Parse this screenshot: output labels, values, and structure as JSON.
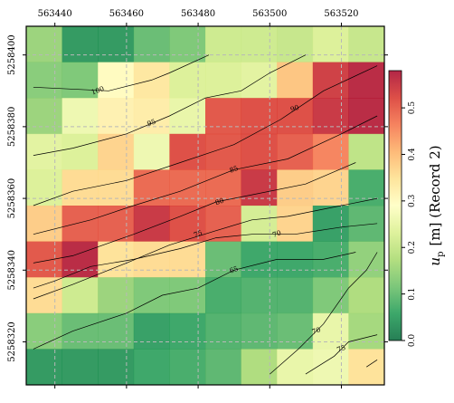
{
  "chart_data": {
    "type": "heatmap",
    "xlim": [
      563432,
      563532
    ],
    "ylim": [
      5258308,
      5258408
    ],
    "x_ticks": [
      "563440",
      "563460",
      "563480",
      "563500",
      "563520"
    ],
    "x_tick_values": [
      563440,
      563460,
      563480,
      563500,
      563520
    ],
    "y_ticks": [
      "5258320",
      "5258340",
      "5258360",
      "5258380",
      "5258400"
    ],
    "y_tick_values": [
      5258320,
      5258340,
      5258360,
      5258380,
      5258400
    ],
    "grid": true,
    "cell_size": 10,
    "x_origin": 563432,
    "y_origin": 5258408,
    "colorbar": {
      "label": "u_p [m] (Record 2)",
      "label_main": "u",
      "label_sub": "p",
      "label_rest": "[m]  (Record 2)",
      "min": 0.0,
      "max": 0.58,
      "ticks": [
        "0.0",
        "0.1",
        "0.2",
        "0.3",
        "0.4",
        "0.5"
      ],
      "tick_values": [
        0.0,
        0.1,
        0.2,
        0.3,
        0.4,
        0.5
      ],
      "colormap": "RdYlGn_r"
    },
    "values": [
      [
        0.15,
        0.04,
        0.04,
        0.1,
        0.12,
        0.21,
        0.21,
        0.2,
        0.23,
        0.2
      ],
      [
        0.13,
        0.12,
        0.3,
        0.34,
        0.23,
        0.23,
        0.24,
        0.39,
        0.54,
        0.57
      ],
      [
        0.15,
        0.26,
        0.32,
        0.33,
        0.25,
        0.51,
        0.52,
        0.52,
        0.55,
        0.57
      ],
      [
        0.24,
        0.23,
        0.37,
        0.26,
        0.52,
        0.51,
        0.52,
        0.5,
        0.46,
        0.19
      ],
      [
        0.23,
        0.36,
        0.36,
        0.49,
        0.49,
        0.49,
        0.55,
        0.38,
        0.37,
        0.07
      ],
      [
        0.38,
        0.5,
        0.5,
        0.55,
        0.52,
        0.5,
        0.22,
        0.37,
        0.05,
        0.09
      ],
      [
        0.51,
        0.57,
        0.35,
        0.36,
        0.36,
        0.1,
        0.06,
        0.06,
        0.07,
        0.14
      ],
      [
        0.36,
        0.21,
        0.15,
        0.12,
        0.12,
        0.07,
        0.08,
        0.08,
        0.12,
        0.17
      ],
      [
        0.13,
        0.1,
        0.1,
        0.05,
        0.06,
        0.08,
        0.09,
        0.1,
        0.25,
        0.16
      ],
      [
        0.04,
        0.04,
        0.04,
        0.06,
        0.07,
        0.09,
        0.17,
        0.25,
        0.26,
        0.35
      ]
    ],
    "contours": [
      {
        "label": "100",
        "points": [
          [
            563434,
            5258391
          ],
          [
            563455,
            5258390
          ],
          [
            563467,
            5258393
          ],
          [
            563472,
            5258395
          ],
          [
            563483,
            5258400
          ]
        ],
        "label_at": [
          563452,
          5258390
        ]
      },
      {
        "label": "95",
        "points": [
          [
            563434,
            5258372
          ],
          [
            563445,
            5258374
          ],
          [
            563460,
            5258378
          ],
          [
            563472,
            5258383
          ],
          [
            563482,
            5258388
          ],
          [
            563492,
            5258390
          ],
          [
            563500,
            5258395
          ],
          [
            563510,
            5258400
          ]
        ],
        "label_at": [
          563467,
          5258381
        ]
      },
      {
        "label": "90",
        "points": [
          [
            563434,
            5258358
          ],
          [
            563445,
            5258362
          ],
          [
            563460,
            5258365
          ],
          [
            563475,
            5258370
          ],
          [
            563490,
            5258375
          ],
          [
            563503,
            5258382
          ],
          [
            563515,
            5258390
          ],
          [
            563530,
            5258397
          ]
        ],
        "label_at": [
          563507,
          5258385
        ]
      },
      {
        "label": "85",
        "points": [
          [
            563434,
            5258350
          ],
          [
            563450,
            5258354
          ],
          [
            563462,
            5258358
          ],
          [
            563475,
            5258362
          ],
          [
            563490,
            5258368
          ],
          [
            563505,
            5258371
          ],
          [
            563520,
            5258378
          ],
          [
            563530,
            5258383
          ]
        ],
        "label_at": [
          563490,
          5258368
        ]
      },
      {
        "label": "80",
        "points": [
          [
            563434,
            5258342
          ],
          [
            563445,
            5258344
          ],
          [
            563462,
            5258350
          ],
          [
            563475,
            5258355
          ],
          [
            563485,
            5258359
          ],
          [
            563495,
            5258361
          ],
          [
            563510,
            5258364
          ],
          [
            563524,
            5258370
          ]
        ],
        "label_at": [
          563486,
          5258359
        ]
      },
      {
        "label": "75",
        "points": [
          [
            563434,
            5258332
          ],
          [
            563445,
            5258336
          ],
          [
            563460,
            5258342
          ],
          [
            563472,
            5258347
          ],
          [
            563485,
            5258351
          ],
          [
            563495,
            5258354
          ],
          [
            563505,
            5258355
          ],
          [
            563520,
            5258358
          ],
          [
            563530,
            5258360
          ]
        ],
        "label_at": [
          563480,
          5258350
        ]
      },
      {
        "label": "70",
        "points": [
          [
            563434,
            5258335
          ],
          [
            563440,
            5258337
          ],
          [
            563450,
            5258341
          ],
          [
            563462,
            5258343
          ],
          [
            563475,
            5258346
          ],
          [
            563485,
            5258349
          ],
          [
            563495,
            5258350
          ],
          [
            563507,
            5258350
          ],
          [
            563520,
            5258352
          ],
          [
            563530,
            5258353
          ]
        ],
        "label_at": [
          563502,
          5258350
        ]
      },
      {
        "label": "65",
        "points": [
          [
            563434,
            5258318
          ],
          [
            563445,
            5258323
          ],
          [
            563460,
            5258328
          ],
          [
            563470,
            5258333
          ],
          [
            563480,
            5258335
          ],
          [
            563490,
            5258340
          ],
          [
            563502,
            5258343
          ],
          [
            563515,
            5258343
          ],
          [
            563524,
            5258345
          ]
        ],
        "label_at": [
          563490,
          5258340
        ]
      },
      {
        "label": "70",
        "points": [
          [
            563500,
            5258311
          ],
          [
            563508,
            5258318
          ],
          [
            563515,
            5258325
          ],
          [
            563522,
            5258335
          ],
          [
            563527,
            5258340
          ],
          [
            563530,
            5258345
          ]
        ],
        "label_at": [
          563513,
          5258323
        ]
      },
      {
        "label": "75",
        "points": [
          [
            563510,
            5258311
          ],
          [
            563518,
            5258316
          ],
          [
            563522,
            5258320
          ],
          [
            563530,
            5258322
          ]
        ],
        "label_at": [
          563520,
          5258318
        ]
      },
      {
        "label": "",
        "points": [
          [
            563527,
            5258313
          ],
          [
            563530,
            5258315
          ]
        ],
        "label_at": null
      }
    ]
  }
}
